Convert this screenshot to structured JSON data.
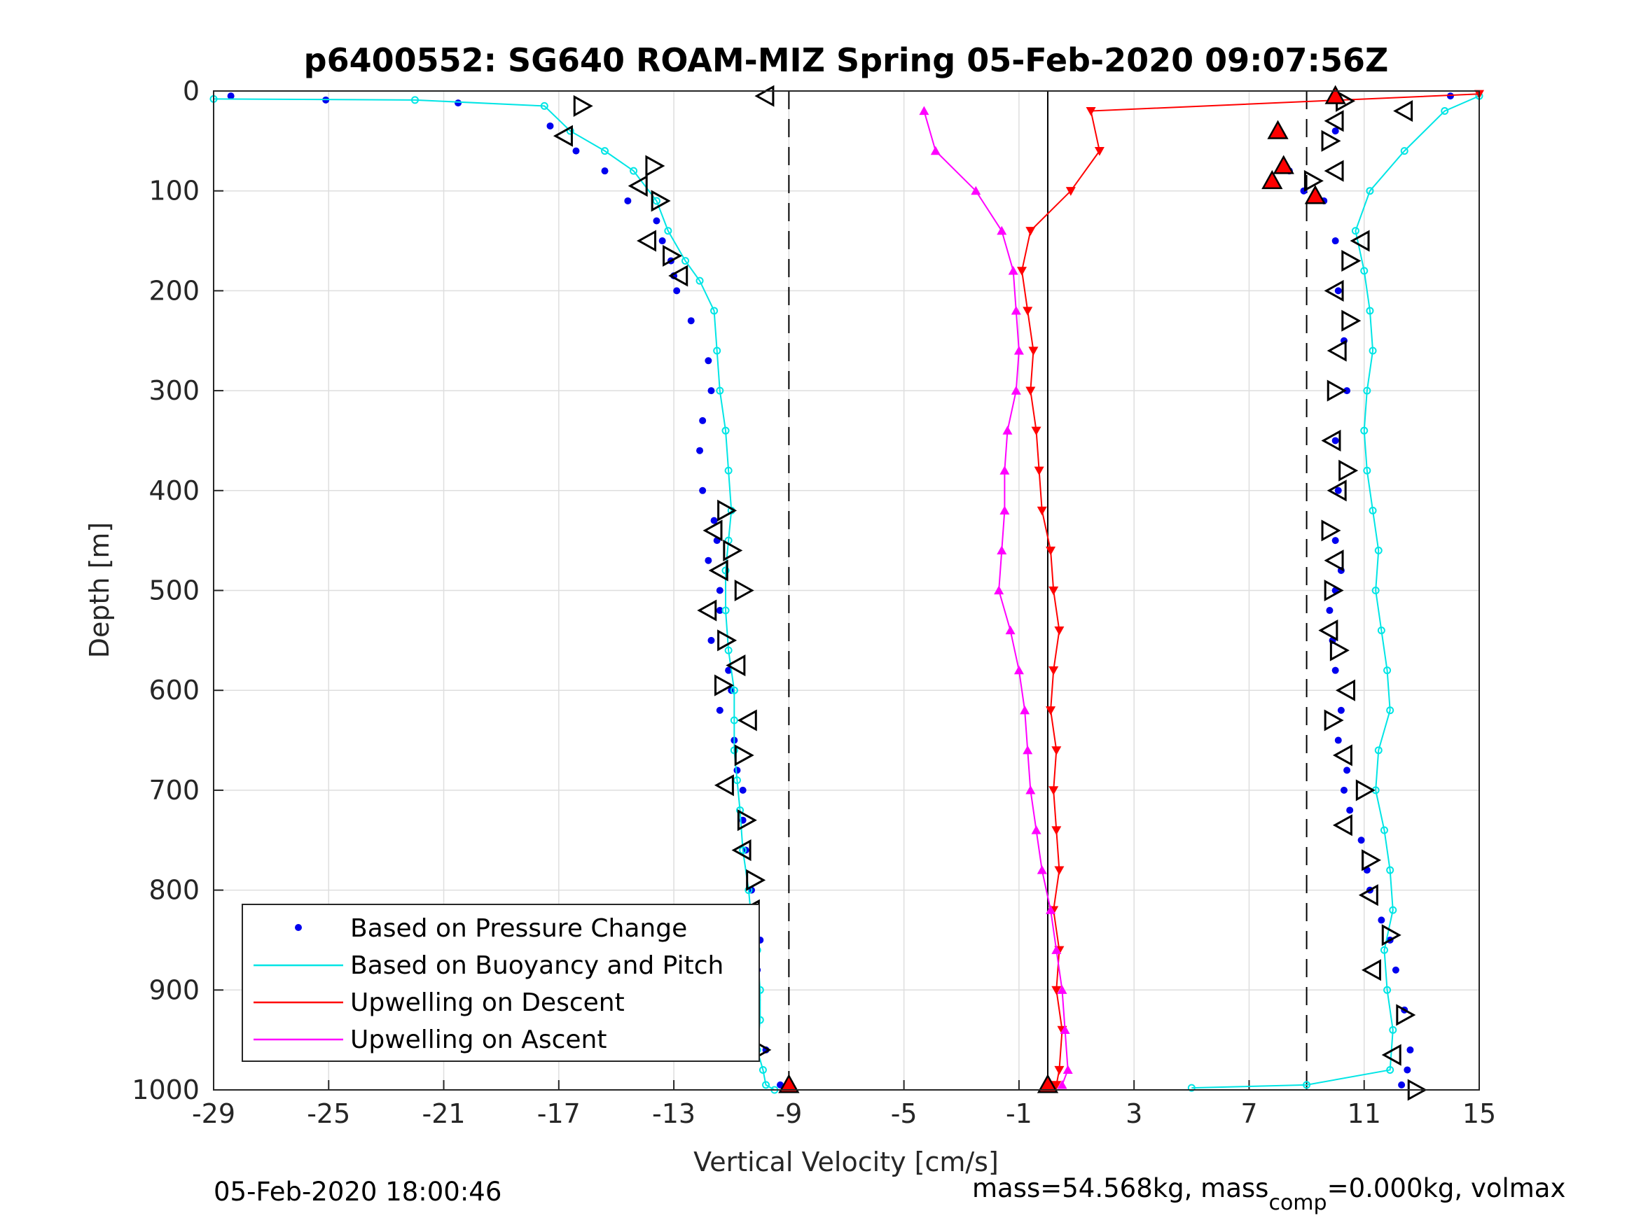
{
  "chart_data": {
    "type": "scatter",
    "title": "p6400552: SG640 ROAM-MIZ Spring 05-Feb-2020 09:07:56Z",
    "xlabel": "Vertical Velocity [cm/s]",
    "ylabel": "Depth [m]",
    "xlim": [
      -29,
      15
    ],
    "ylim": [
      1000,
      0
    ],
    "y_reversed": true,
    "grid": true,
    "xticks": [
      "-29",
      "-25",
      "-21",
      "-17",
      "-13",
      "-9",
      "-5",
      "-1",
      "3",
      "7",
      "11",
      "15"
    ],
    "yticks": [
      "0",
      "100",
      "200",
      "300",
      "400",
      "500",
      "600",
      "700",
      "800",
      "900",
      "1000"
    ],
    "reference_lines": {
      "dashed": [
        -9.0,
        9.0
      ],
      "solid": [
        0.0
      ]
    },
    "legend": {
      "placement": "bottom-left",
      "entries": [
        {
          "label": "Based on Pressure Change",
          "color": "#0000ee",
          "style": "dot"
        },
        {
          "label": "Based on Buoyancy and Pitch",
          "color": "#00e5e5",
          "style": "line"
        },
        {
          "label": "Upwelling on Descent",
          "color": "#ff0000",
          "style": "line"
        },
        {
          "label": "Upwelling on Ascent",
          "color": "#ff00ff",
          "style": "line"
        }
      ]
    },
    "series": [
      {
        "name": "Based on Pressure Change",
        "color": "#0000ee",
        "segment": "descent",
        "x": [
          -28.4,
          -25.1,
          -20.5,
          -17.3,
          -16.4,
          -15.4,
          -14.6,
          -13.6,
          -13.4,
          -13.1,
          -13.0,
          -12.9,
          -12.4,
          -11.8,
          -11.7,
          -12.0,
          -12.1,
          -12.0,
          -11.6,
          -11.5,
          -11.8,
          -11.4,
          -11.4,
          -11.7,
          -11.1,
          -11.0,
          -11.4,
          -10.9,
          -10.8,
          -10.6,
          -10.6,
          -10.5,
          -10.3,
          -10.2,
          -10.0,
          -10.1,
          -10.1,
          -9.8,
          -9.3
        ],
        "y": [
          5,
          9,
          12,
          35,
          60,
          80,
          110,
          130,
          150,
          170,
          185,
          200,
          230,
          270,
          300,
          330,
          360,
          400,
          430,
          450,
          470,
          500,
          520,
          550,
          580,
          600,
          620,
          650,
          680,
          700,
          730,
          760,
          800,
          830,
          850,
          880,
          910,
          960,
          995
        ]
      },
      {
        "name": "Based on Buoyancy and Pitch",
        "color": "#00e5e5",
        "segment": "descent",
        "x": [
          -29.0,
          -22.0,
          -17.5,
          -16.6,
          -15.4,
          -14.4,
          -13.6,
          -13.2,
          -12.6,
          -12.1,
          -11.6,
          -11.5,
          -11.4,
          -11.2,
          -11.1,
          -11.0,
          -11.1,
          -11.2,
          -11.2,
          -11.1,
          -10.9,
          -10.9,
          -10.9,
          -10.8,
          -10.7,
          -10.6,
          -10.4,
          -10.3,
          -10.1,
          -10.0,
          -10.0,
          -10.1,
          -9.9,
          -9.8,
          -9.5
        ],
        "y": [
          8,
          9,
          15,
          40,
          60,
          80,
          110,
          140,
          170,
          190,
          220,
          260,
          300,
          340,
          380,
          420,
          450,
          480,
          520,
          560,
          600,
          630,
          660,
          690,
          720,
          760,
          800,
          830,
          860,
          900,
          930,
          960,
          980,
          995,
          1000
        ]
      },
      {
        "name": "Based on Pressure Change",
        "color": "#0000ee",
        "segment": "ascent",
        "x": [
          14.0,
          10.0,
          8.4,
          8.9,
          9.6,
          10.0,
          10.1,
          10.3,
          10.4,
          10.0,
          10.1,
          10.0,
          10.2,
          10.0,
          9.8,
          9.9,
          10.0,
          10.2,
          10.1,
          10.4,
          10.3,
          10.5,
          10.9,
          11.1,
          11.2,
          11.6,
          11.9,
          12.1,
          12.4,
          12.6,
          12.5,
          12.3
        ],
        "y": [
          5,
          40,
          80,
          100,
          110,
          150,
          200,
          250,
          300,
          350,
          400,
          450,
          480,
          500,
          520,
          550,
          580,
          620,
          650,
          680,
          700,
          720,
          750,
          780,
          800,
          830,
          850,
          880,
          920,
          960,
          980,
          995
        ]
      },
      {
        "name": "Based on Buoyancy and Pitch",
        "color": "#00e5e5",
        "segment": "ascent",
        "x": [
          15.0,
          13.8,
          12.4,
          11.2,
          10.7,
          11.0,
          11.2,
          11.3,
          11.1,
          11.0,
          11.1,
          11.3,
          11.5,
          11.4,
          11.6,
          11.8,
          11.9,
          11.5,
          11.4,
          11.7,
          11.9,
          12.0,
          11.7,
          11.8,
          12.0,
          11.9,
          9.0,
          5.0
        ],
        "y": [
          5,
          20,
          60,
          100,
          140,
          180,
          220,
          260,
          300,
          340,
          380,
          420,
          460,
          500,
          540,
          580,
          620,
          660,
          700,
          740,
          780,
          820,
          860,
          900,
          940,
          980,
          995,
          998
        ]
      },
      {
        "name": "Upwelling on Descent",
        "color": "#ff0000",
        "x": [
          15.0,
          1.5,
          1.8,
          0.8,
          -0.6,
          -0.9,
          -0.7,
          -0.5,
          -0.6,
          -0.4,
          -0.3,
          -0.2,
          0.1,
          0.2,
          0.4,
          0.2,
          0.1,
          0.3,
          0.2,
          0.3,
          0.4,
          0.2,
          0.4,
          0.3,
          0.5,
          0.4,
          0.3
        ],
        "y": [
          3,
          20,
          60,
          100,
          140,
          180,
          220,
          260,
          300,
          340,
          380,
          420,
          460,
          500,
          540,
          580,
          620,
          660,
          700,
          740,
          780,
          820,
          860,
          900,
          940,
          980,
          995
        ]
      },
      {
        "name": "Upwelling on Ascent",
        "color": "#ff00ff",
        "x": [
          -4.3,
          -3.9,
          -2.5,
          -1.6,
          -1.2,
          -1.1,
          -1.0,
          -1.1,
          -1.4,
          -1.5,
          -1.5,
          -1.6,
          -1.7,
          -1.3,
          -1.0,
          -0.8,
          -0.7,
          -0.6,
          -0.4,
          -0.2,
          0.1,
          0.3,
          0.5,
          0.6,
          0.7,
          0.5
        ],
        "y": [
          20,
          60,
          100,
          140,
          180,
          220,
          260,
          300,
          340,
          380,
          420,
          460,
          500,
          540,
          580,
          620,
          660,
          700,
          740,
          780,
          820,
          860,
          900,
          940,
          980,
          995
        ]
      },
      {
        "name": "Pump events (descent)",
        "color": "#000000",
        "marker": "triangle-outline",
        "x": [
          -16.2,
          -16.8,
          -13.7,
          -14.2,
          -13.5,
          -13.9,
          -13.1,
          -12.8,
          -11.2,
          -11.6,
          -11.0,
          -11.4,
          -10.6,
          -11.8,
          -11.2,
          -10.8,
          -11.3,
          -10.4,
          -10.6,
          -11.2,
          -10.5,
          -10.6,
          -10.2,
          -10.3,
          -10.0,
          -9.8
        ],
        "y": [
          15,
          45,
          75,
          95,
          110,
          150,
          165,
          185,
          420,
          440,
          460,
          480,
          500,
          520,
          550,
          575,
          595,
          630,
          665,
          695,
          730,
          760,
          790,
          820,
          960,
          5
        ]
      },
      {
        "name": "Pump events (ascent)",
        "color": "#000000",
        "marker": "triangle-outline",
        "x": [
          10.3,
          10.0,
          9.8,
          10.0,
          9.2,
          10.9,
          10.5,
          10.0,
          10.5,
          10.1,
          10.0,
          9.9,
          10.4,
          10.1,
          9.8,
          10.0,
          9.9,
          9.8,
          10.1,
          10.4,
          9.9,
          10.3,
          11.0,
          10.3,
          11.2,
          11.2,
          11.9,
          11.3,
          12.4,
          12.0,
          12.8,
          12.4
        ],
        "y": [
          10,
          30,
          50,
          80,
          90,
          150,
          170,
          200,
          230,
          260,
          300,
          350,
          380,
          400,
          440,
          470,
          500,
          540,
          560,
          600,
          630,
          665,
          700,
          735,
          770,
          805,
          845,
          880,
          925,
          965,
          1000,
          20
        ]
      },
      {
        "name": "Red markers",
        "color": "#ff0000",
        "marker": "triangle-filled",
        "x": [
          -9.0,
          0.0,
          8.0,
          8.2,
          7.8,
          9.3,
          10.0
        ],
        "y": [
          995,
          995,
          40,
          75,
          90,
          105,
          5
        ]
      }
    ]
  },
  "footer": {
    "timestamp": "05-Feb-2020 18:00:46",
    "mass_prefix": "mass=54.568kg, mass",
    "mass_sub": "comp",
    "mass_suffix": "=0.000kg, volmax"
  }
}
